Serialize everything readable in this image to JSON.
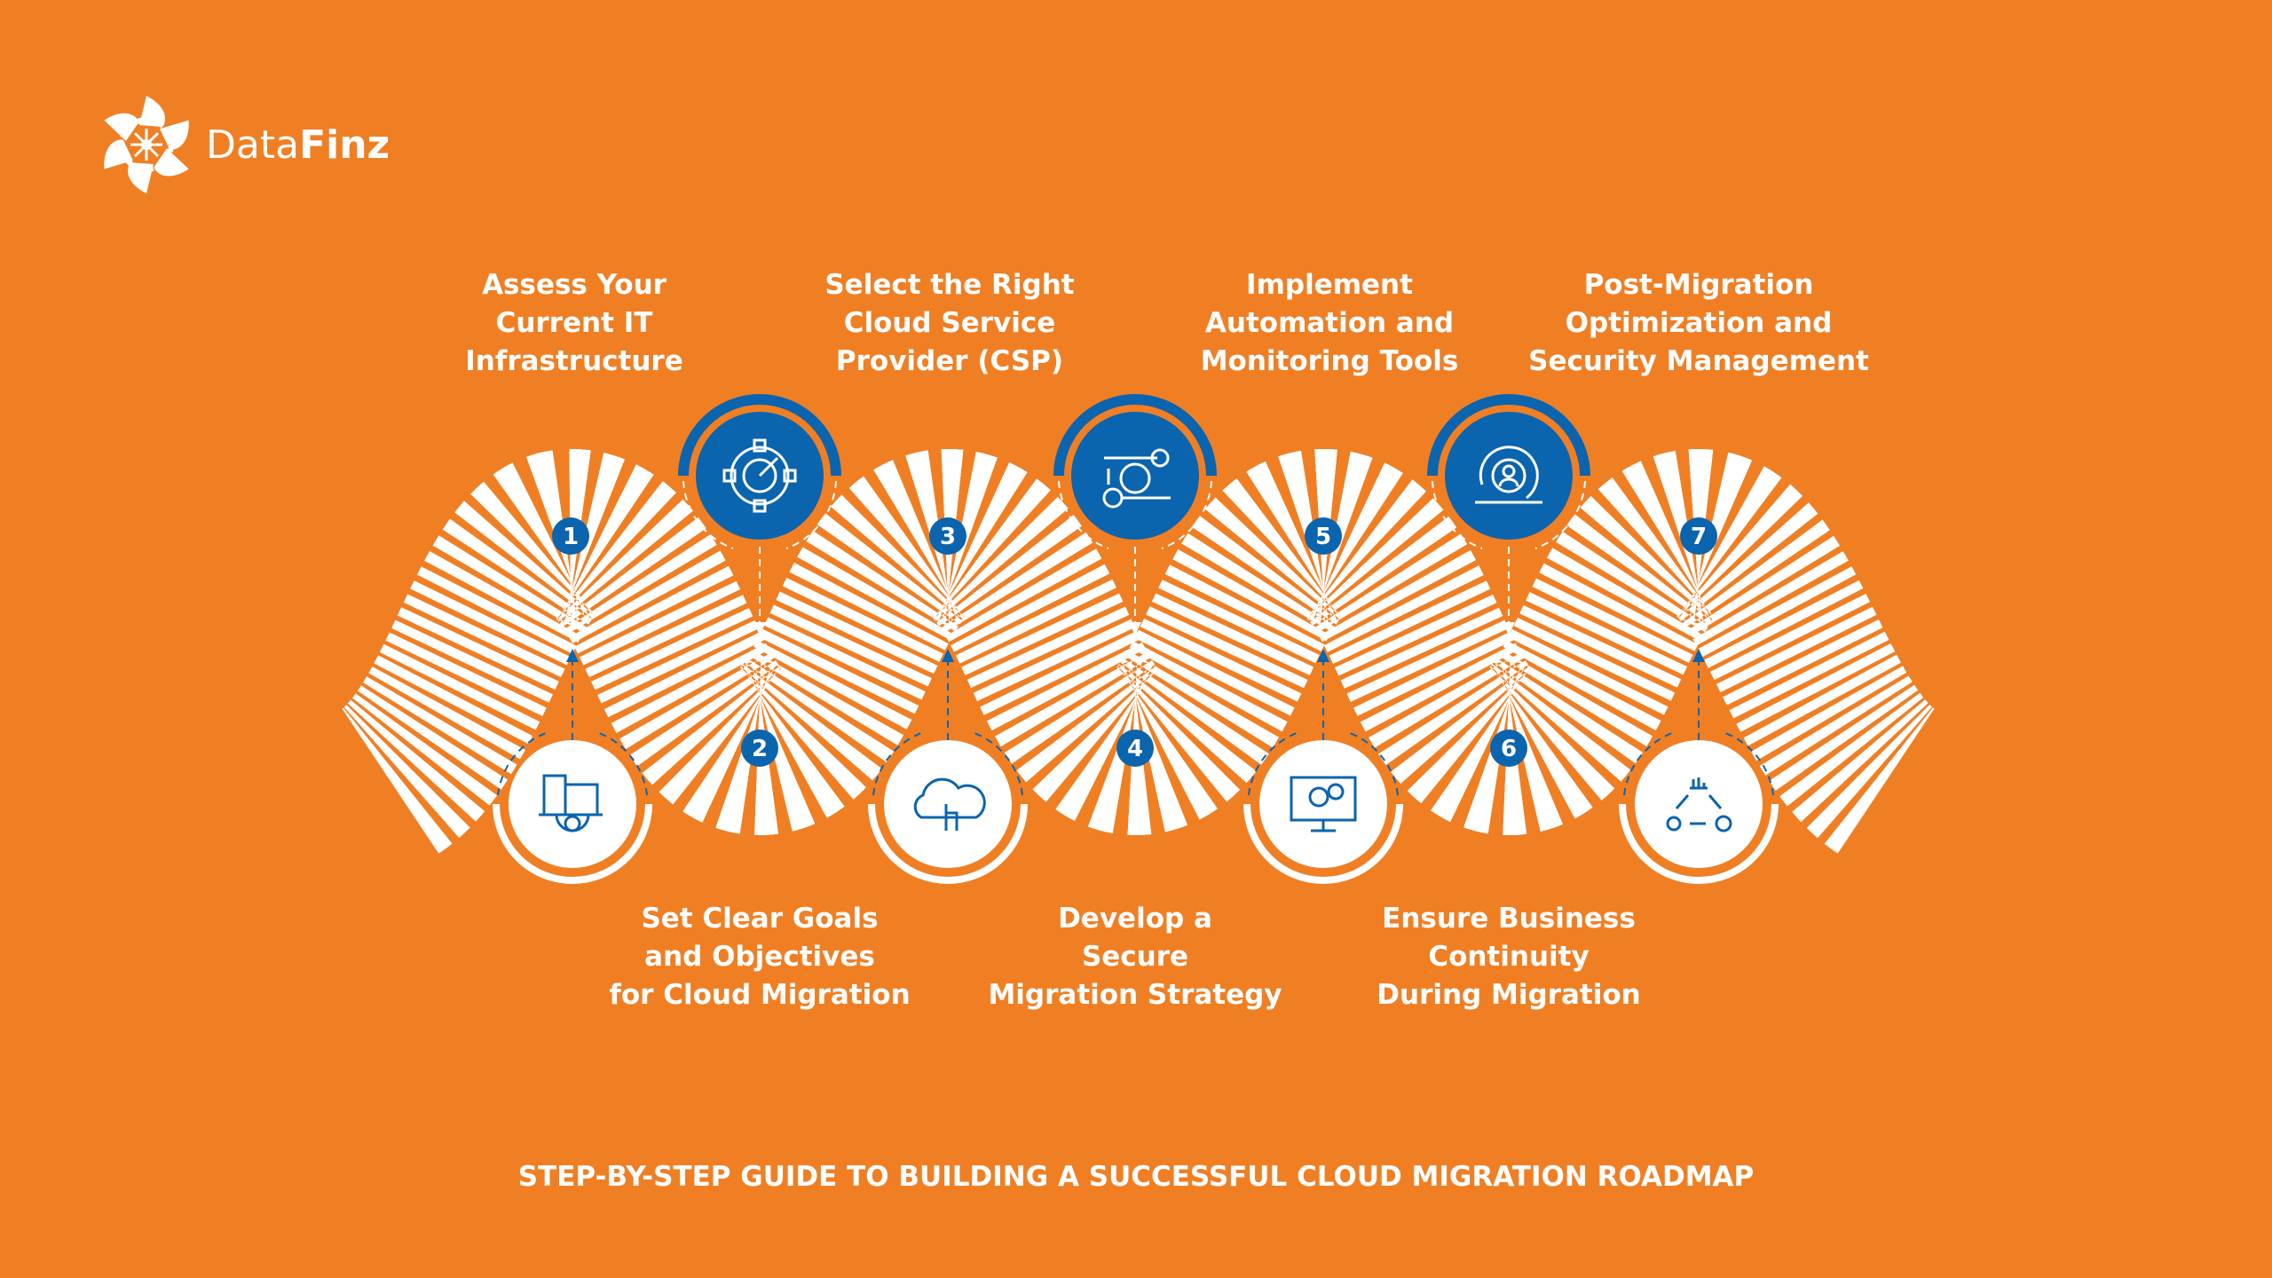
{
  "brand": {
    "name_light": "Data",
    "name_bold": "Finz"
  },
  "colors": {
    "background": "#F07F24",
    "accent": "#0B64AE",
    "road": "#FFFFFF"
  },
  "steps": [
    {
      "number": "1",
      "lines": [
        "Assess Your",
        "Current IT",
        "Infrastructure"
      ],
      "icon": "buildings-gear-icon"
    },
    {
      "number": "2",
      "lines": [
        "Set Clear Goals",
        "and Objectives",
        "for Cloud Migration"
      ],
      "icon": "target-icon"
    },
    {
      "number": "3",
      "lines": [
        "Select the Right",
        "Cloud Service",
        "Provider (CSP)"
      ],
      "icon": "cloud-click-icon"
    },
    {
      "number": "4",
      "lines": [
        "Develop a",
        "Secure",
        "Migration Strategy"
      ],
      "icon": "strategy-puzzle-icon"
    },
    {
      "number": "5",
      "lines": [
        "Implement",
        "Automation and",
        "Monitoring Tools"
      ],
      "icon": "monitor-gear-icon"
    },
    {
      "number": "6",
      "lines": [
        "Ensure Business",
        "Continuity",
        "During Migration"
      ],
      "icon": "user-cycle-icon"
    },
    {
      "number": "7",
      "lines": [
        "Post-Migration",
        "Optimization and",
        "Security Management"
      ],
      "icon": "optimization-flow-icon"
    }
  ],
  "footer": "STEP-BY-STEP GUIDE TO BUILDING A SUCCESSFUL CLOUD MIGRATION ROADMAP"
}
